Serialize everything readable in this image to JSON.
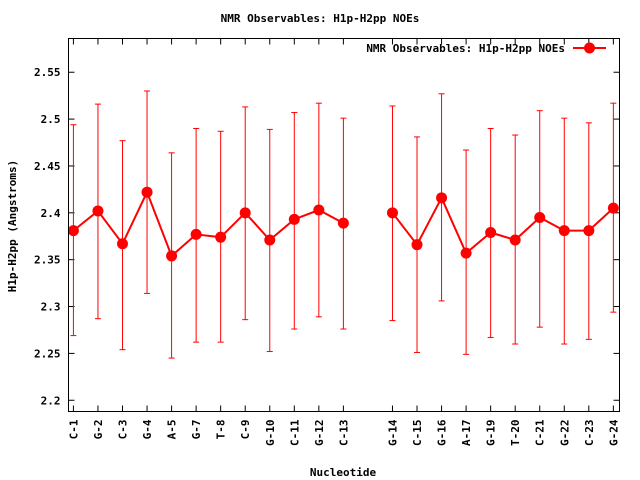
{
  "chart_data": {
    "type": "line",
    "title": "NMR Observables: H1p-H2pp NOEs",
    "xlabel": "Nucleotide",
    "ylabel": "H1p-H2pp (Angstroms)",
    "ylim": [
      2.188,
      2.586
    ],
    "xlim": [
      -0.2,
      22.25
    ],
    "yticks": [
      "2.2",
      "2.25",
      "2.3",
      "2.35",
      "2.4",
      "2.45",
      "2.5",
      "2.55"
    ],
    "ytick_values": [
      2.2,
      2.25,
      2.3,
      2.35,
      2.4,
      2.45,
      2.5,
      2.55
    ],
    "legend": {
      "label": "NMR Observables: H1p-H2pp NOEs",
      "placement": "top-right"
    },
    "grid": false,
    "series_color": "#ff0000",
    "segments": [
      {
        "x": [
          0,
          1,
          2,
          3,
          4,
          5,
          6,
          7,
          8,
          9,
          10,
          11
        ],
        "categories": [
          "C-1",
          "G-2",
          "C-3",
          "G-4",
          "A-5",
          "G-7",
          "T-8",
          "C-9",
          "G-10",
          "C-11",
          "G-12",
          "C-13"
        ],
        "values": [
          2.381,
          2.402,
          2.367,
          2.422,
          2.354,
          2.377,
          2.374,
          2.4,
          2.371,
          2.393,
          2.403,
          2.389
        ],
        "err_high": [
          2.494,
          2.516,
          2.477,
          2.53,
          2.464,
          2.49,
          2.487,
          2.513,
          2.489,
          2.507,
          2.517,
          2.501
        ],
        "err_low": [
          2.269,
          2.287,
          2.254,
          2.314,
          2.245,
          2.262,
          2.262,
          2.286,
          2.252,
          2.276,
          2.289,
          2.276
        ]
      },
      {
        "x": [
          13,
          14,
          15,
          16,
          17,
          18,
          19,
          20,
          21,
          22
        ],
        "categories": [
          "G-14",
          "C-15",
          "G-16",
          "A-17",
          "G-19",
          "T-20",
          "C-21",
          "G-22",
          "C-23",
          "G-24"
        ],
        "values": [
          2.4,
          2.366,
          2.416,
          2.357,
          2.379,
          2.371,
          2.395,
          2.381,
          2.381,
          2.405
        ],
        "err_high": [
          2.514,
          2.481,
          2.527,
          2.467,
          2.49,
          2.483,
          2.509,
          2.501,
          2.496,
          2.517
        ],
        "err_low": [
          2.285,
          2.251,
          2.306,
          2.249,
          2.267,
          2.26,
          2.278,
          2.26,
          2.265,
          2.294
        ]
      }
    ]
  }
}
